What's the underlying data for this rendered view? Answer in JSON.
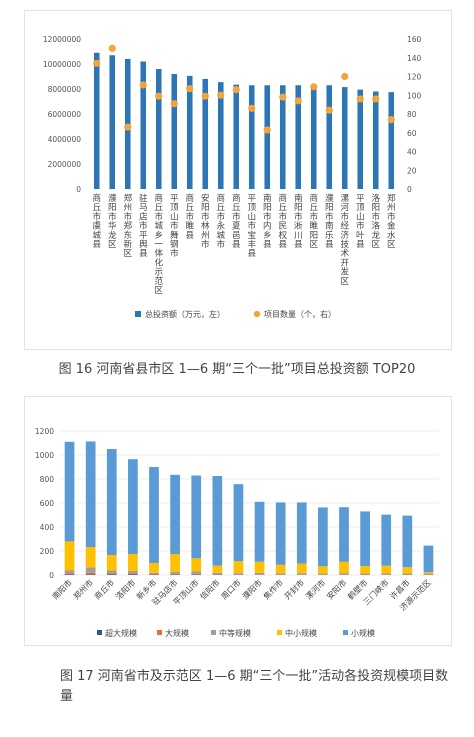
{
  "colors": {
    "bar_blue": "#2E75B6",
    "dot_orange": "#F5A43A",
    "super_large": "#2E5596",
    "large": "#E8702A",
    "medium": "#9E9E9E",
    "small_medium": "#FFC000",
    "small": "#5B9BD5",
    "grid": "#D9D9D9"
  },
  "chart_data": [
    {
      "type": "bar",
      "title": "",
      "categories": [
        "商丘市虞城县",
        "濮阳市华龙区",
        "郑州市郑东新区",
        "驻马店市平舆县",
        "商丘市城乡一体化示范区",
        "平顶山市舞钢市",
        "商丘市睢县",
        "安阳市林州市",
        "商丘市永城市",
        "商丘市夏邑县",
        "平顶山市宝丰县",
        "南阳市内乡县",
        "商丘市民权县",
        "南阳市淅川县",
        "商丘市睢阳区",
        "濮阳市南乐县",
        "漯河市经济技术开发区",
        "平顶山市叶县",
        "洛阳市洛龙区",
        "郑州市金水区"
      ],
      "series": [
        {
          "name": "总投资额（万元，左）",
          "type": "bar",
          "axis": "left",
          "values": [
            10900000,
            10700000,
            10400000,
            10200000,
            9600000,
            9200000,
            9050000,
            8800000,
            8550000,
            8350000,
            8300000,
            8300000,
            8300000,
            8300000,
            8300000,
            8300000,
            8150000,
            7950000,
            7800000,
            7750000
          ]
        },
        {
          "name": "项目数量（个，右）",
          "type": "scatter",
          "axis": "right",
          "values": [
            134,
            150,
            66,
            111,
            99,
            91,
            107,
            99,
            100,
            106,
            86,
            63,
            98,
            94,
            109,
            84,
            120,
            96,
            96,
            74
          ]
        }
      ],
      "y_left": {
        "min": 0,
        "max": 12000000,
        "ticks": [
          "0",
          "2000000",
          "4000000",
          "6000000",
          "8000000",
          "10000000",
          "12000000"
        ]
      },
      "y_right": {
        "min": 0,
        "max": 160,
        "ticks": [
          "0",
          "20",
          "40",
          "60",
          "80",
          "100",
          "120",
          "140",
          "160"
        ]
      },
      "grid": false,
      "legend_position": "bottom"
    },
    {
      "type": "bar",
      "stacked": true,
      "title": "",
      "categories": [
        "南阳市",
        "郑州市",
        "商丘市",
        "洛阳市",
        "新乡市",
        "驻马店市",
        "平顶山市",
        "信阳市",
        "周口市",
        "濮阳市",
        "焦作市",
        "开封市",
        "漯河市",
        "安阳市",
        "鹤壁市",
        "三门峡市",
        "许昌市",
        "济源示范区"
      ],
      "series": [
        {
          "name": "超大规模",
          "values": [
            5,
            6,
            4,
            4,
            3,
            3,
            3,
            3,
            2,
            2,
            2,
            2,
            2,
            2,
            2,
            2,
            2,
            1
          ]
        },
        {
          "name": "大规模",
          "values": [
            10,
            12,
            8,
            8,
            5,
            6,
            6,
            4,
            3,
            4,
            3,
            3,
            3,
            3,
            2,
            3,
            2,
            2
          ]
        },
        {
          "name": "中等规模",
          "values": [
            25,
            45,
            25,
            22,
            10,
            18,
            20,
            12,
            10,
            12,
            10,
            10,
            8,
            10,
            8,
            8,
            8,
            10
          ]
        },
        {
          "name": "中小规模",
          "values": [
            240,
            170,
            130,
            140,
            82,
            148,
            110,
            60,
            100,
            92,
            70,
            80,
            60,
            95,
            63,
            65,
            53,
            12
          ]
        },
        {
          "name": "小规模",
          "values": [
            830,
            880,
            883,
            791,
            800,
            660,
            690,
            746,
            642,
            500,
            520,
            510,
            490,
            455,
            455,
            425,
            430,
            220
          ]
        }
      ],
      "y": {
        "min": 0,
        "max": 1200,
        "ticks": [
          "0",
          "200",
          "400",
          "600",
          "800",
          "1000",
          "1200"
        ]
      },
      "grid": true,
      "legend_position": "bottom"
    }
  ],
  "captions": {
    "fig16": "图 16  河南省县市区 1—6 期“三个一批”项目总投资额 TOP20",
    "fig17": "图 17  河南省市及示范区 1—6 期“三个一批”活动各投资规模项目数量"
  }
}
